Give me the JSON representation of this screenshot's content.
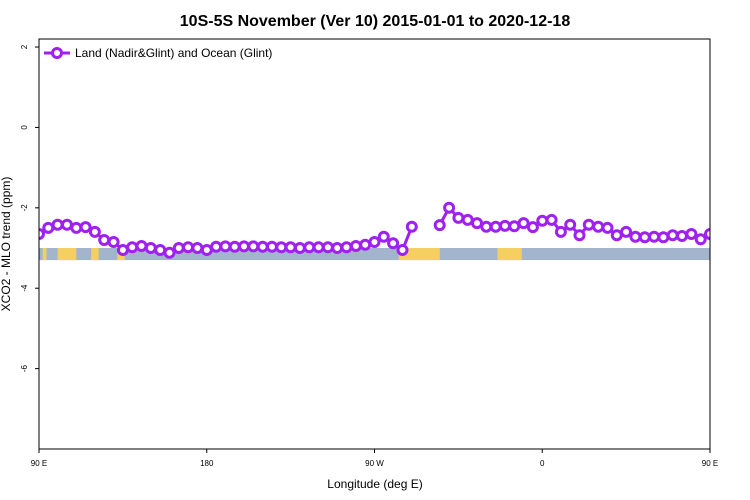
{
  "chart_data": {
    "type": "line",
    "title": "10S-5S November (Ver 10)   2015-01-01 to 2020-12-18",
    "xlabel": "Longitude (deg E)",
    "ylabel": "XCO2 - MLO trend (ppm)",
    "xlim": [
      90,
      450
    ],
    "ylim": [
      -8,
      2.2
    ],
    "x_ticks": [
      {
        "value": 90,
        "label": "90 E"
      },
      {
        "value": 180,
        "label": "180"
      },
      {
        "value": 270,
        "label": "90 W"
      },
      {
        "value": 360,
        "label": "0"
      },
      {
        "value": 450,
        "label": "90 E"
      },
      {
        "value": 540,
        "label": "180"
      }
    ],
    "y_ticks": [
      {
        "value": 2,
        "label": "2"
      },
      {
        "value": 0,
        "label": "0"
      },
      {
        "value": -2,
        "label": "-2"
      },
      {
        "value": -4,
        "label": "-4"
      },
      {
        "value": -6,
        "label": "-6"
      }
    ],
    "legend_position": "top-left",
    "series": [
      {
        "name": "Land (Nadir&Glint) and Ocean (Glint)",
        "color": "#a020f0",
        "points": [
          [
            90,
            -2.65
          ],
          [
            95,
            -2.5
          ],
          [
            100,
            -2.42
          ],
          [
            105,
            -2.42
          ],
          [
            110,
            -2.5
          ],
          [
            115,
            -2.48
          ],
          [
            120,
            -2.6
          ],
          [
            125,
            -2.8
          ],
          [
            130,
            -2.85
          ],
          [
            135,
            -3.05
          ],
          [
            140,
            -2.98
          ],
          [
            145,
            -2.95
          ],
          [
            150,
            -3.0
          ],
          [
            155,
            -3.05
          ],
          [
            160,
            -3.12
          ],
          [
            165,
            -3.0
          ],
          [
            170,
            -2.98
          ],
          [
            175,
            -3.0
          ],
          [
            180,
            -3.05
          ],
          [
            185,
            -2.97
          ],
          [
            190,
            -2.96
          ],
          [
            195,
            -2.97
          ],
          [
            200,
            -2.96
          ],
          [
            205,
            -2.96
          ],
          [
            210,
            -2.97
          ],
          [
            215,
            -2.97
          ],
          [
            220,
            -2.98
          ],
          [
            225,
            -2.98
          ],
          [
            230,
            -3.0
          ],
          [
            235,
            -2.98
          ],
          [
            240,
            -2.98
          ],
          [
            245,
            -2.98
          ],
          [
            250,
            -3.0
          ],
          [
            255,
            -2.98
          ],
          [
            260,
            -2.95
          ],
          [
            265,
            -2.92
          ],
          [
            270,
            -2.85
          ],
          [
            275,
            -2.72
          ],
          [
            280,
            -2.88
          ],
          [
            285,
            -3.05
          ],
          [
            290,
            -2.47
          ],
          null,
          [
            305,
            -2.43
          ],
          [
            310,
            -2.0
          ],
          [
            315,
            -2.25
          ],
          [
            320,
            -2.3
          ],
          [
            325,
            -2.38
          ],
          [
            330,
            -2.47
          ],
          [
            335,
            -2.47
          ],
          [
            340,
            -2.45
          ],
          [
            345,
            -2.46
          ],
          [
            350,
            -2.38
          ],
          [
            355,
            -2.48
          ],
          [
            360,
            -2.32
          ],
          [
            365,
            -2.3
          ],
          [
            370,
            -2.6
          ],
          [
            375,
            -2.42
          ],
          [
            380,
            -2.68
          ],
          [
            385,
            -2.42
          ],
          [
            390,
            -2.47
          ],
          [
            395,
            -2.5
          ],
          [
            400,
            -2.68
          ],
          [
            405,
            -2.6
          ],
          [
            410,
            -2.72
          ],
          [
            415,
            -2.73
          ],
          [
            420,
            -2.72
          ],
          [
            425,
            -2.73
          ],
          [
            430,
            -2.68
          ],
          [
            435,
            -2.7
          ],
          [
            440,
            -2.65
          ],
          [
            445,
            -2.78
          ],
          [
            450,
            -2.65
          ],
          [
            455,
            -2.55
          ],
          [
            460,
            -2.45
          ],
          [
            465,
            -2.4
          ],
          [
            470,
            -2.4
          ],
          [
            475,
            -2.45
          ],
          [
            480,
            -2.5
          ],
          [
            485,
            -2.45
          ],
          [
            490,
            -2.6
          ],
          [
            495,
            -2.8
          ],
          [
            500,
            -2.85
          ],
          [
            505,
            -3.07
          ],
          [
            510,
            -2.98
          ],
          [
            515,
            -2.95
          ],
          [
            520,
            -3.0
          ],
          [
            525,
            -3.05
          ],
          [
            530,
            -3.12
          ],
          [
            535,
            -3.0
          ],
          [
            540,
            -2.97
          ]
        ]
      }
    ],
    "map_strip": {
      "y_top": -3.0,
      "y_bottom": -3.3,
      "ocean_color": "#a2b5cd",
      "land_color": "#f5d060",
      "land_spans": [
        [
          92,
          94
        ],
        [
          100,
          110
        ],
        [
          118,
          122
        ],
        [
          132,
          136
        ],
        [
          283,
          305
        ],
        [
          336,
          349
        ],
        [
          459,
          466
        ],
        [
          480,
          490
        ],
        [
          500,
          504
        ],
        [
          540,
          543
        ]
      ]
    }
  }
}
